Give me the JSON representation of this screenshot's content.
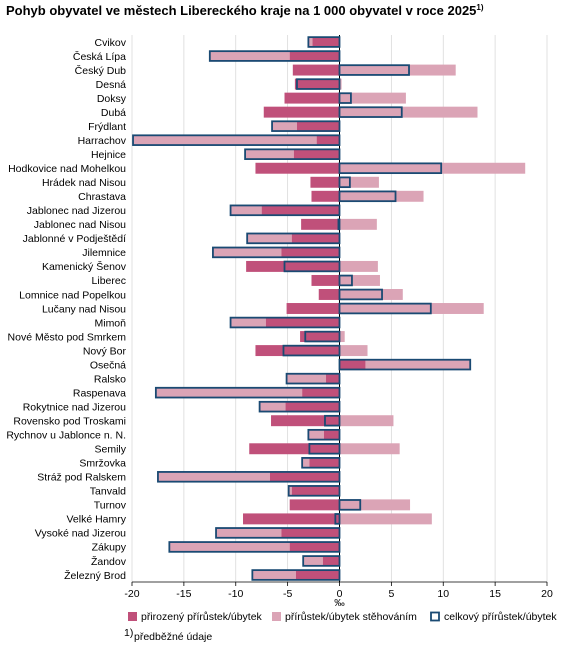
{
  "chart_data": {
    "type": "bar",
    "orientation": "horizontal",
    "title": "Pohyb obyvatel ve městech Libereckého kraje na 1 000 obyvatel v roce 2025",
    "title_superscript": "1)",
    "xlabel": "‰",
    "ylabel": "",
    "xlim": [
      -20,
      20
    ],
    "xticks": [
      -20,
      -15,
      -10,
      -5,
      0,
      5,
      10,
      15,
      20
    ],
    "grid": "vertical",
    "legend_position": "bottom",
    "footnote": "předběžné údaje",
    "footnote_mark": "1)",
    "categories": [
      "Cvikov",
      "Česká Lípa",
      "Český Dub",
      "Desná",
      "Doksy",
      "Dubá",
      "Frýdlant",
      "Harrachov",
      "Hejnice",
      "Hodkovice nad Mohelkou",
      "Hrádek nad Nisou",
      "Chrastava",
      "Jablonec nad Jizerou",
      "Jablonec nad Nisou",
      "Jablonné v Podještědí",
      "Jilemnice",
      "Kamenický Šenov",
      "Liberec",
      "Lomnice nad Popelkou",
      "Lučany nad Nisou",
      "Mimoň",
      "Nové Město pod Smrkem",
      "Nový Bor",
      "Osečná",
      "Ralsko",
      "Raspenava",
      "Rokytnice nad Jizerou",
      "Rovensko pod Troskami",
      "Rychnov u Jablonce n. N.",
      "Semily",
      "Smržovka",
      "Stráž pod Ralskem",
      "Tanvald",
      "Turnov",
      "Velké Hamry",
      "Vysoké nad Jizerou",
      "Zákupy",
      "Žandov",
      "Železný Brod"
    ],
    "series": [
      {
        "name": "přirozený přírůstek/úbytek",
        "color": "#c0507a",
        "values": [
          -2.6,
          -4.8,
          -4.5,
          -4.3,
          -5.3,
          -7.3,
          -4.1,
          -2.2,
          -4.4,
          -8.1,
          -2.8,
          -2.7,
          -7.5,
          -3.7,
          -4.6,
          -5.6,
          -9.0,
          -2.7,
          -2.0,
          -5.1,
          -7.1,
          -3.8,
          -8.1,
          2.5,
          -1.3,
          -3.6,
          -5.2,
          -6.6,
          -1.5,
          -8.7,
          -2.9,
          -6.7,
          -4.6,
          -4.8,
          -9.3,
          -5.6,
          -4.8,
          -1.6,
          -4.2
        ]
      },
      {
        "name": "přírůstek/úbytek stěhováním",
        "color": "#dba4b6",
        "values": [
          -0.4,
          -7.7,
          11.2,
          0.2,
          6.4,
          13.3,
          -2.4,
          -17.7,
          -4.7,
          17.9,
          3.8,
          8.1,
          -3.0,
          3.6,
          -4.3,
          -6.6,
          3.7,
          3.9,
          6.1,
          13.9,
          -3.4,
          0.5,
          2.7,
          10.1,
          -3.8,
          -14.1,
          -2.5,
          5.2,
          -1.5,
          5.8,
          -0.7,
          -10.8,
          -0.3,
          6.8,
          8.9,
          -6.3,
          -11.6,
          -1.9,
          -4.2
        ]
      },
      {
        "name": "celkový přírůstek/úbytek",
        "color": "#1a4a73",
        "values": [
          -3.0,
          -12.5,
          6.7,
          -4.1,
          1.1,
          6.0,
          -6.5,
          -19.9,
          -9.1,
          9.8,
          1.0,
          5.4,
          -10.5,
          -0.1,
          -8.9,
          -12.2,
          -5.3,
          1.2,
          4.1,
          8.8,
          -10.5,
          -3.3,
          -5.4,
          12.6,
          -5.1,
          -17.7,
          -7.7,
          -1.4,
          -3.0,
          -2.9,
          -3.6,
          -17.5,
          -4.9,
          2.0,
          -0.4,
          -11.9,
          -16.4,
          -3.5,
          -8.4
        ]
      }
    ]
  }
}
